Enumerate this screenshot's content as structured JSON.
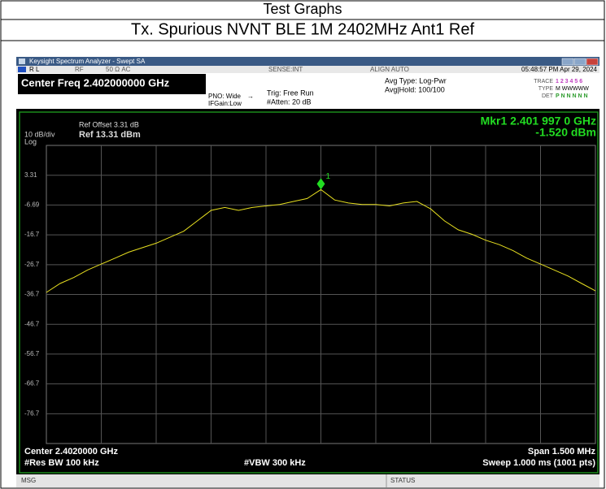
{
  "header": {
    "section": "Test Graphs",
    "title": "Tx. Spurious NVNT BLE 1M 2402MHz Ant1 Ref"
  },
  "window_title": "Keysight Spectrum Analyzer - Swept SA",
  "status": {
    "mode": "R L",
    "rf": "RF",
    "impedance": "50 Ω  AC",
    "sense": "SENSE:INT",
    "align": "ALIGN AUTO",
    "clock": "05:48:57 PM Apr 29, 2024"
  },
  "settings": {
    "center_freq": "Center Freq 2.402000000 GHz",
    "pno": "PNO: Wide",
    "ifgain": "IFGain:Low",
    "trig": "Trig: Free Run",
    "atten": "#Atten: 20 dB",
    "avg_type": "Avg Type: Log-Pwr",
    "avg_hold": "Avg|Hold: 100/100",
    "trace_label": "TRACE",
    "trace_value": "1 2 3 4 5 6",
    "type_label": "TYPE",
    "type_value": "M WWWWW",
    "det_label": "DET",
    "det_value": "P N N N N N"
  },
  "display": {
    "ref_offset": "Ref Offset 3.31 dB",
    "ref_level": "Ref 13.31 dBm",
    "scale": "10 dB/div",
    "scale_type": "Log"
  },
  "marker": {
    "frequency": "Mkr1 2.401 997 0 GHz",
    "amplitude": "-1.520 dBm",
    "label": "1"
  },
  "yticks": [
    3.31,
    -6.69,
    -16.7,
    -26.7,
    -36.7,
    -46.7,
    -56.7,
    -66.7,
    -76.7
  ],
  "trace": {
    "values": [
      -36,
      -33,
      -31,
      -28.5,
      -26.5,
      -24.5,
      -22.5,
      -21,
      -19.5,
      -17.5,
      -15.5,
      -12,
      -8.5,
      -7.5,
      -8.5,
      -7.5,
      -7,
      -6.5,
      -5.5,
      -4.5,
      -1.52,
      -5,
      -6,
      -6.5,
      -6.5,
      -7,
      -6,
      -5.5,
      -8,
      -12,
      -15,
      -16.5,
      -18.5,
      -20,
      -22,
      -24.5,
      -26.5,
      -28.5,
      -30.5,
      -33,
      -35.5
    ]
  },
  "footer": {
    "center": "Center 2.4020000 GHz",
    "span": "Span 1.500 MHz",
    "rbw": "#Res BW 100 kHz",
    "vbw": "#VBW 300 kHz",
    "sweep": "Sweep  1.000 ms (1001 pts)",
    "msg": "MSG",
    "status": "STATUS"
  }
}
